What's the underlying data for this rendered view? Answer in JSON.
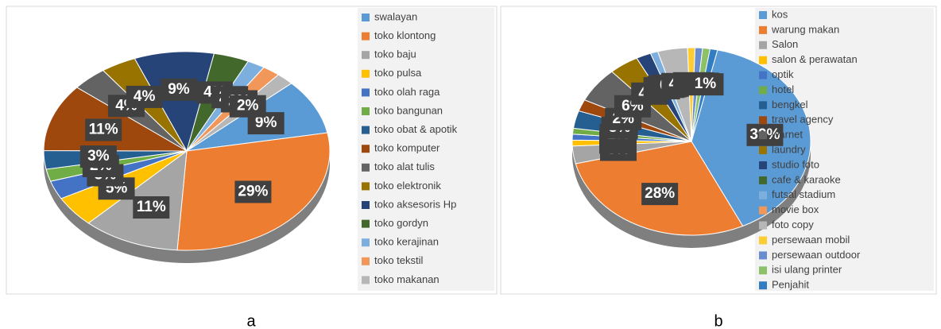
{
  "chart_data": [
    {
      "type": "pie",
      "caption": "a",
      "categories": [
        "swalayan",
        "toko klontong",
        "toko baju",
        "toko pulsa",
        "toko olah raga",
        "toko bangunan",
        "toko obat & apotik",
        "toko komputer",
        "toko alat tulis",
        "toko elektronik",
        "toko aksesoris Hp",
        "toko gordyn",
        "toko kerajinan",
        "toko tekstil",
        "toko makanan"
      ],
      "values": [
        9,
        29,
        11,
        5,
        3,
        2,
        3,
        11,
        4,
        4,
        9,
        4,
        2,
        2,
        2
      ],
      "value_labels": [
        "9%",
        "29%",
        "11%",
        "5%",
        "3%",
        "2%",
        "3%",
        "11%",
        "4%",
        "4%",
        "9%",
        "4%",
        "2%",
        "2%",
        "2%"
      ],
      "colors": [
        "#5b9bd5",
        "#ed7d31",
        "#a5a5a5",
        "#ffc000",
        "#4472c4",
        "#70ad47",
        "#255e91",
        "#9e480e",
        "#636363",
        "#997300",
        "#264478",
        "#43682b",
        "#7cafdd",
        "#f1975a",
        "#b7b7b7"
      ]
    },
    {
      "type": "pie",
      "caption": "b",
      "categories": [
        "kos",
        "warung makan",
        "Salon",
        "salon & perawatan",
        "optik",
        "hotel",
        "bengkel",
        "travel agency",
        "warnet",
        "laundry",
        "studio foto",
        "cafe & karaoke",
        "futsal stadium",
        "movie box",
        "foto copy",
        "persewaan mobil",
        "persewaan outdoor",
        "isi ulang printer",
        "Penjahit"
      ],
      "values": [
        39,
        28,
        3,
        1,
        1,
        1,
        3,
        2,
        6,
        4,
        2,
        0,
        1,
        0,
        4,
        1,
        1,
        1,
        1
      ],
      "value_labels": [
        "39%",
        "28%",
        "3%",
        "1%",
        "1%",
        "1%",
        "3%",
        "2%",
        "6%",
        "4%",
        "2%",
        "0%",
        "1%",
        "0%",
        "4%",
        "1%",
        "1%",
        "1%",
        "1%"
      ],
      "colors": [
        "#5b9bd5",
        "#ed7d31",
        "#a5a5a5",
        "#ffc000",
        "#4472c4",
        "#70ad47",
        "#255e91",
        "#9e480e",
        "#636363",
        "#997300",
        "#264478",
        "#43682b",
        "#7cafdd",
        "#f1975a",
        "#b7b7b7",
        "#ffcd33",
        "#698ed0",
        "#8cc168",
        "#327dc2"
      ]
    }
  ]
}
